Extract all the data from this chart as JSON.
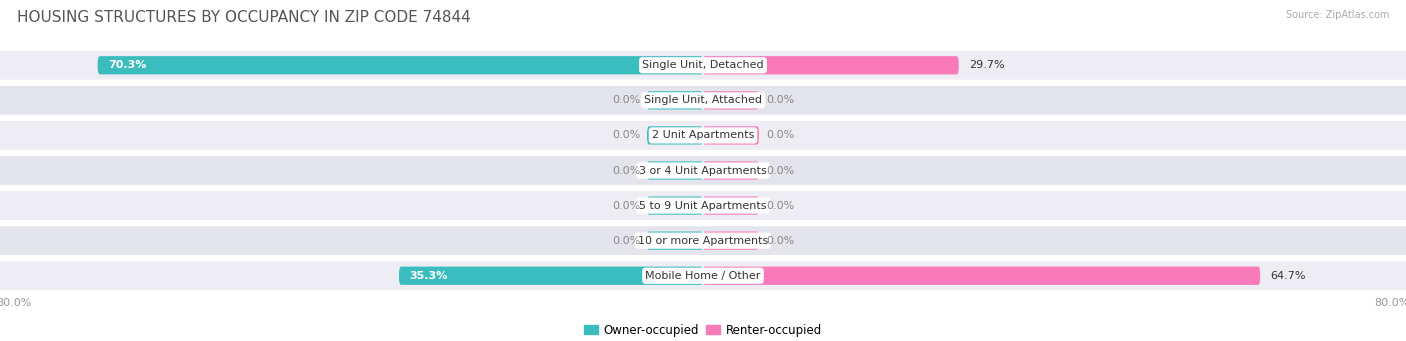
{
  "title": "HOUSING STRUCTURES BY OCCUPANCY IN ZIP CODE 74844",
  "source": "Source: ZipAtlas.com",
  "categories": [
    "Single Unit, Detached",
    "Single Unit, Attached",
    "2 Unit Apartments",
    "3 or 4 Unit Apartments",
    "5 to 9 Unit Apartments",
    "10 or more Apartments",
    "Mobile Home / Other"
  ],
  "owner_pct": [
    70.3,
    0.0,
    0.0,
    0.0,
    0.0,
    0.0,
    35.3
  ],
  "renter_pct": [
    29.7,
    0.0,
    0.0,
    0.0,
    0.0,
    0.0,
    64.7
  ],
  "owner_color": "#3bbcbe",
  "renter_color": "#f87ab8",
  "row_bg_color_odd": "#ededf3",
  "row_bg_color_even": "#e4e4ec",
  "axis_min": -80.0,
  "axis_max": 80.0,
  "title_fontsize": 11,
  "label_fontsize": 8,
  "tick_fontsize": 8,
  "bar_height": 0.52,
  "background_color": "#ffffff",
  "stub_size": 6.5,
  "owner_label_white_threshold": 5.0
}
